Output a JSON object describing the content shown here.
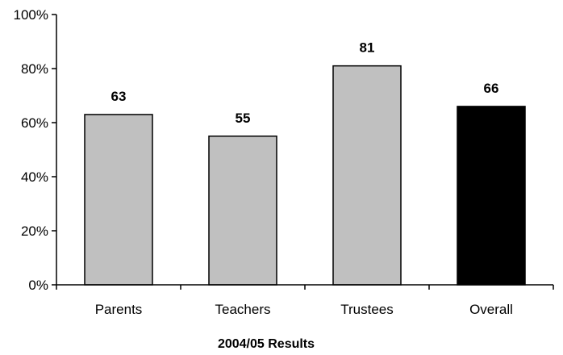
{
  "chart_data": {
    "type": "bar",
    "title": "",
    "xlabel": "2004/05 Results",
    "ylabel": "",
    "categories": [
      "Parents",
      "Teachers",
      "Trustees",
      "Overall"
    ],
    "values": [
      63,
      55,
      81,
      66
    ],
    "value_labels": [
      "63",
      "55",
      "81",
      "66"
    ],
    "bar_colors": [
      "#c0c0c0",
      "#c0c0c0",
      "#c0c0c0",
      "#000000"
    ],
    "ylim": [
      0,
      100
    ],
    "yticks": [
      0,
      20,
      40,
      60,
      80,
      100
    ],
    "ytick_labels": [
      "0%",
      "20%",
      "40%",
      "60%",
      "80%",
      "100%"
    ],
    "grid": false,
    "legend": "none"
  }
}
